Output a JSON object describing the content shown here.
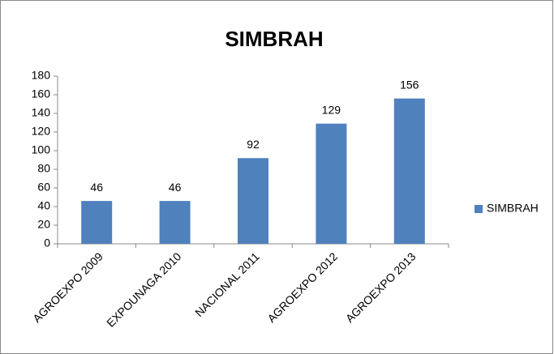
{
  "chart_data": {
    "type": "bar",
    "title": "SIMBRAH",
    "categories": [
      "AGROEXPO 2009",
      "EXPOUNAGA 2010",
      "NACIONAL 2011",
      "AGROEXPO 2012",
      "AGROEXPO 2013"
    ],
    "series": [
      {
        "name": "SIMBRAH",
        "color": "#4f81bd",
        "values": [
          46,
          46,
          92,
          129,
          156
        ]
      }
    ],
    "ylim": [
      0,
      180
    ],
    "yticks": [
      0,
      20,
      40,
      60,
      80,
      100,
      120,
      140,
      160,
      180
    ],
    "grid": false,
    "legend": "right"
  }
}
